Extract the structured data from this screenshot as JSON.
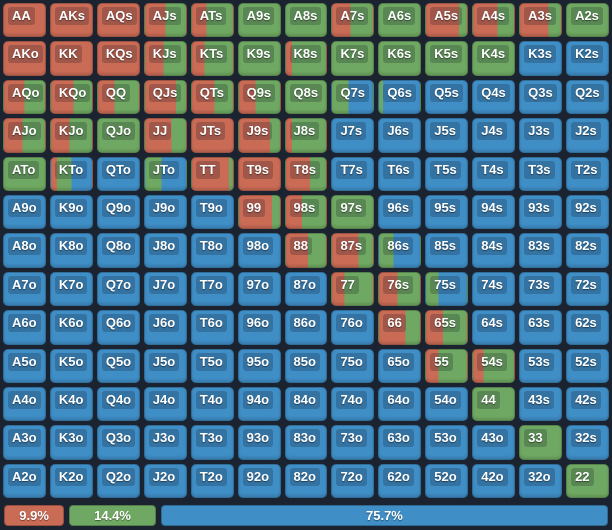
{
  "colors": {
    "red": "#ca6b55",
    "green": "#6fa862",
    "blue": "#3f8ec6",
    "background": "#1c2330",
    "label_overlay": "rgba(12,18,30,0.22)",
    "text": "#ffffff"
  },
  "grid": {
    "color_codes": {
      "r": "red",
      "g": "green",
      "b": "blue"
    },
    "rows": [
      [
        "AA:r100",
        "AKs:r100",
        "AQs:r100",
        "AJs:r50 g50",
        "ATs:r35 g65",
        "A9s:g100",
        "A8s:g100",
        "A7s:r45 g55",
        "A6s:g100",
        "A5s:r80 g20",
        "A4s:r60 g40",
        "A3s:r70 g30",
        "A2s:g100"
      ],
      [
        "AKo:r100",
        "KK:r100",
        "KQs:r100",
        "KJs:r45 g55",
        "KTs:r30 g70",
        "K9s:g100",
        "K8s:r15 g85",
        "K7s:g100",
        "K6s:g100",
        "K5s:g100",
        "K4s:g100",
        "K3s:b100",
        "K2s:b100"
      ],
      [
        "AQo:r50 g50",
        "KQo:r55 g45",
        "QQ:r40 g60",
        "QJs:r75 g25",
        "QTs:r55 g45",
        "Q9s:r40 g60",
        "Q8s:g100",
        "Q7s:g40 b60",
        "Q6s:g10 b90",
        "Q5s:b100",
        "Q4s:b100",
        "Q3s:b100",
        "Q2s:b100"
      ],
      [
        "AJo:r45 g55",
        "KJo:r45 g55",
        "QJo:g100",
        "JJ:r65 g35",
        "JTs:r100",
        "J9s:r75 g25",
        "J8s:r15 g85",
        "J7s:b100",
        "J6s:b100",
        "J5s:b100",
        "J4s:b100",
        "J3s:b100",
        "J2s:b100"
      ],
      [
        "ATo:g100",
        "KTo:r15 g35 b50",
        "QTo:b100",
        "JTo:g40 b60",
        "TT:r90 g10",
        "T9s:r100",
        "T8s:r60 g40",
        "T7s:b100",
        "T6s:b100",
        "T5s:b100",
        "T4s:b100",
        "T3s:b100",
        "T2s:b100"
      ],
      [
        "A9o:b100",
        "K9o:b100",
        "Q9o:b100",
        "J9o:b100",
        "T9o:b100",
        "99:r80 g20",
        "98s:r40 g60",
        "97s:g100",
        "96s:b100",
        "95s:b100",
        "94s:b100",
        "93s:b100",
        "92s:b100"
      ],
      [
        "A8o:b100",
        "K8o:b100",
        "Q8o:b100",
        "J8o:b100",
        "T8o:b100",
        "98o:b100",
        "88:r55 g45",
        "87s:r65 g35",
        "86s:g35 b65",
        "85s:b100",
        "84s:b100",
        "83s:b100",
        "82s:b100"
      ],
      [
        "A7o:b100",
        "K7o:b100",
        "Q7o:b100",
        "J7o:b100",
        "T7o:b100",
        "97o:b100",
        "87o:b100",
        "77:r30 g70",
        "76s:r45 g55",
        "75s:g30 b70",
        "74s:b100",
        "73s:b100",
        "72s:b100"
      ],
      [
        "A6o:b100",
        "K6o:b100",
        "Q6o:b100",
        "J6o:b100",
        "T6o:b100",
        "96o:b100",
        "86o:b100",
        "76o:b100",
        "66:r65 g35",
        "65s:r42 g58",
        "64s:b100",
        "63s:b100",
        "62s:b100"
      ],
      [
        "A5o:b100",
        "K5o:b100",
        "Q5o:b100",
        "J5o:b100",
        "T5o:b100",
        "95o:b100",
        "85o:b100",
        "75o:b100",
        "65o:b100",
        "55:r30 g70",
        "54s:r25 g75",
        "53s:b100",
        "52s:b100"
      ],
      [
        "A4o:b100",
        "K4o:b100",
        "Q4o:b100",
        "J4o:b100",
        "T4o:b100",
        "94o:b100",
        "84o:b100",
        "74o:b100",
        "64o:b100",
        "54o:b100",
        "44:g100",
        "43s:b100",
        "42s:b100"
      ],
      [
        "A3o:b100",
        "K3o:b100",
        "Q3o:b100",
        "J3o:b100",
        "T3o:b100",
        "93o:b100",
        "83o:b100",
        "73o:b100",
        "63o:b100",
        "53o:b100",
        "43o:b100",
        "33:g100",
        "32s:b100"
      ],
      [
        "A2o:b100",
        "K2o:b100",
        "Q2o:b100",
        "J2o:b100",
        "T2o:b100",
        "92o:b100",
        "82o:b100",
        "72o:b100",
        "62o:b100",
        "52o:b100",
        "42o:b100",
        "32o:b100",
        "22:g100"
      ]
    ]
  },
  "legend": {
    "items": [
      {
        "label": "9.9%",
        "color": "red",
        "percent": 9.9
      },
      {
        "label": "14.4%",
        "color": "green",
        "percent": 14.4
      },
      {
        "label": "75.7%",
        "color": "blue",
        "percent": 75.7
      }
    ]
  }
}
